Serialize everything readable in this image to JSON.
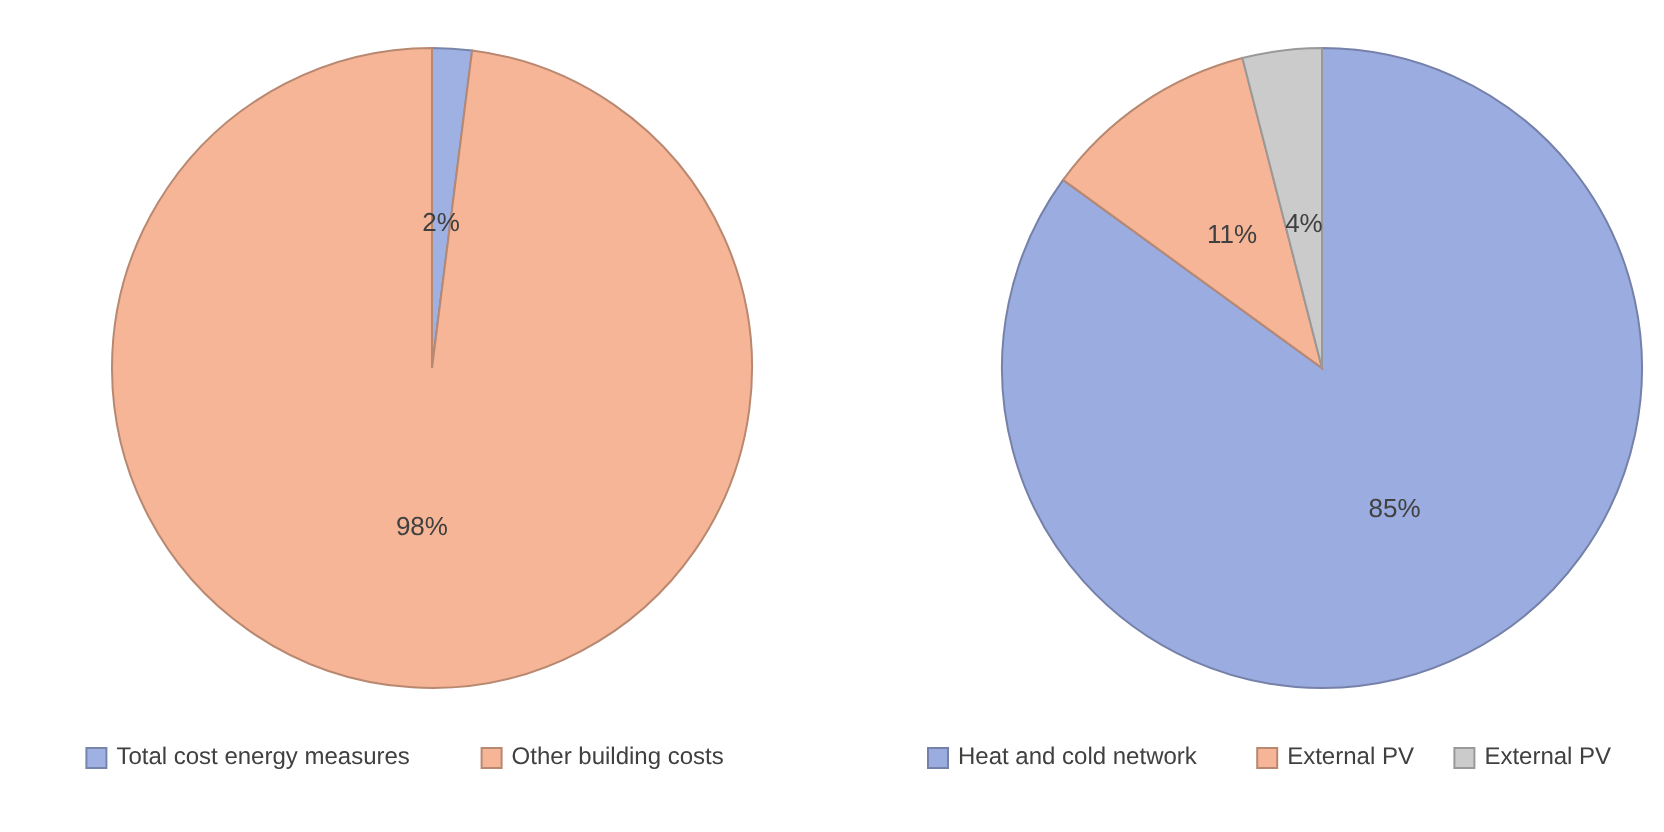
{
  "chart_data": [
    {
      "type": "pie",
      "categories": [
        "Total cost energy measures",
        "Other building costs"
      ],
      "values": [
        2,
        98
      ],
      "colors": [
        "#9fb1e2",
        "#f6b596"
      ],
      "value_labels": [
        "2%",
        "98%"
      ],
      "legend": "bottom"
    },
    {
      "type": "pie",
      "categories": [
        "Heat and cold network",
        "External PV",
        "External PV"
      ],
      "values": [
        85,
        11,
        4
      ],
      "colors": [
        "#9bace0",
        "#f6b596",
        "#cbcbcb"
      ],
      "value_labels": [
        "85%",
        "11%",
        "4%"
      ],
      "legend": "bottom"
    }
  ]
}
